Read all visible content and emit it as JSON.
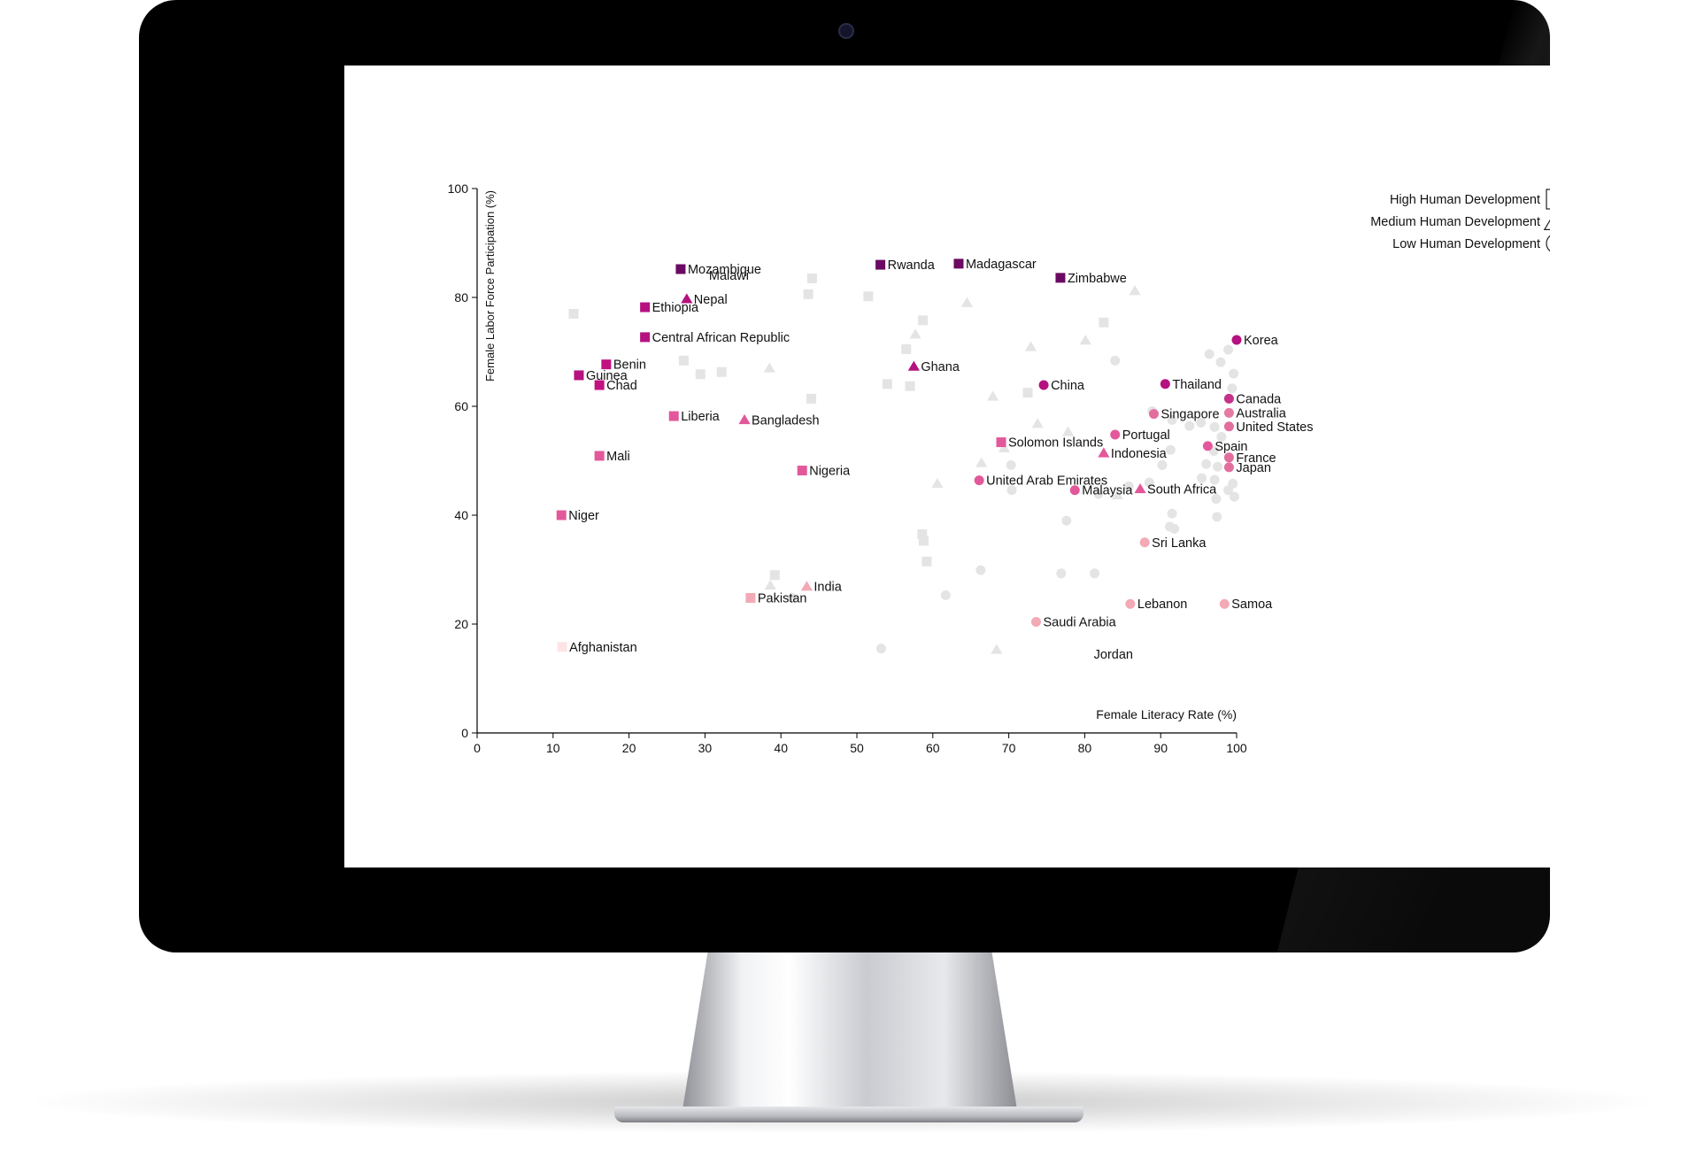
{
  "chart_data": {
    "type": "scatter",
    "xlabel": "Female Literacy Rate (%)",
    "ylabel": "Female Labor Force Participation (%)",
    "xlim": [
      0,
      100
    ],
    "ylim": [
      0,
      100
    ],
    "x_ticks": [
      "0",
      "10",
      "20",
      "30",
      "40",
      "50",
      "60",
      "70",
      "80",
      "90",
      "100"
    ],
    "y_ticks": [
      "0",
      "20",
      "40",
      "60",
      "80",
      "100"
    ],
    "legend": [
      {
        "label": "High Human Development",
        "shape": "square-icon"
      },
      {
        "label": "Medium Human Development",
        "shape": "triangle-icon"
      },
      {
        "label": "Low Human Development",
        "shape": "circle-icon"
      }
    ],
    "legend_position": "top-right",
    "grid": false,
    "points": [
      {
        "name": "Mozambique",
        "x": 26.8,
        "y": 85.2,
        "shape": "square",
        "color": "#6b0a62"
      },
      {
        "name": "Rwanda",
        "x": 53.1,
        "y": 86.0,
        "shape": "square",
        "color": "#6b0a62"
      },
      {
        "name": "Madagascar",
        "x": 63.4,
        "y": 86.2,
        "shape": "square",
        "color": "#6b0a62"
      },
      {
        "name": "Zimbabwe",
        "x": 76.8,
        "y": 83.6,
        "shape": "square",
        "color": "#6b0a62"
      },
      {
        "name": "Ethiopia",
        "x": 22.1,
        "y": 78.2,
        "shape": "square",
        "color": "#b5117f"
      },
      {
        "name": "Nepal",
        "x": 27.6,
        "y": 79.7,
        "shape": "triangle",
        "color": "#b5117f"
      },
      {
        "name": "Central African Republic",
        "x": 22.1,
        "y": 72.7,
        "shape": "square",
        "color": "#b5117f"
      },
      {
        "name": "Benin",
        "x": 17.0,
        "y": 67.7,
        "shape": "square",
        "color": "#c2127f"
      },
      {
        "name": "Guinea",
        "x": 13.4,
        "y": 65.7,
        "shape": "square",
        "color": "#b5117f"
      },
      {
        "name": "Chad",
        "x": 16.1,
        "y": 63.9,
        "shape": "square",
        "color": "#c2127f"
      },
      {
        "name": "Ghana",
        "x": 57.5,
        "y": 67.3,
        "shape": "triangle",
        "color": "#b5117f"
      },
      {
        "name": "China",
        "x": 74.6,
        "y": 63.9,
        "shape": "circle",
        "color": "#b5117f"
      },
      {
        "name": "Thailand",
        "x": 90.6,
        "y": 64.1,
        "shape": "circle",
        "color": "#b5117f"
      },
      {
        "name": "Korea",
        "x": 100.0,
        "y": 72.2,
        "shape": "circle",
        "color": "#b5117f"
      },
      {
        "name": "Canada",
        "x": 99.0,
        "y": 61.4,
        "shape": "circle",
        "color": "#c4328a"
      },
      {
        "name": "Australia",
        "x": 99.0,
        "y": 58.8,
        "shape": "circle",
        "color": "#e679a4"
      },
      {
        "name": "United States",
        "x": 99.0,
        "y": 56.3,
        "shape": "circle",
        "color": "#e26e9e"
      },
      {
        "name": "Singapore",
        "x": 89.1,
        "y": 58.6,
        "shape": "circle",
        "color": "#e26e9e"
      },
      {
        "name": "Liberia",
        "x": 25.9,
        "y": 58.2,
        "shape": "square",
        "color": "#e3589a"
      },
      {
        "name": "Bangladesh",
        "x": 35.2,
        "y": 57.5,
        "shape": "triangle",
        "color": "#e3589a"
      },
      {
        "name": "Portugal",
        "x": 84.0,
        "y": 54.8,
        "shape": "circle",
        "color": "#e3589a"
      },
      {
        "name": "Spain",
        "x": 96.2,
        "y": 52.7,
        "shape": "circle",
        "color": "#e3589a"
      },
      {
        "name": "France",
        "x": 99.0,
        "y": 50.6,
        "shape": "circle",
        "color": "#e26e9e"
      },
      {
        "name": "Japan",
        "x": 99.0,
        "y": 48.8,
        "shape": "circle",
        "color": "#e26e9e"
      },
      {
        "name": "Solomon Islands",
        "x": 69.0,
        "y": 53.4,
        "shape": "square",
        "color": "#e3589a"
      },
      {
        "name": "Indonesia",
        "x": 82.5,
        "y": 51.4,
        "shape": "triangle",
        "color": "#e3589a"
      },
      {
        "name": "Mali",
        "x": 16.1,
        "y": 50.9,
        "shape": "square",
        "color": "#e3589a"
      },
      {
        "name": "Nigeria",
        "x": 42.8,
        "y": 48.2,
        "shape": "square",
        "color": "#e3589a"
      },
      {
        "name": "United Arab Emirates",
        "x": 66.1,
        "y": 46.4,
        "shape": "circle",
        "color": "#e3589a"
      },
      {
        "name": "Malaysia",
        "x": 78.7,
        "y": 44.6,
        "shape": "circle",
        "color": "#e3589a"
      },
      {
        "name": "South Africa",
        "x": 87.3,
        "y": 44.8,
        "shape": "triangle",
        "color": "#e3589a"
      },
      {
        "name": "Niger",
        "x": 11.1,
        "y": 40.0,
        "shape": "square",
        "color": "#e3589a"
      },
      {
        "name": "Sri Lanka",
        "x": 87.9,
        "y": 35.0,
        "shape": "circle",
        "color": "#f3aab5"
      },
      {
        "name": "India",
        "x": 43.4,
        "y": 26.9,
        "shape": "triangle",
        "color": "#f3aab5"
      },
      {
        "name": "Pakistan",
        "x": 36.0,
        "y": 24.8,
        "shape": "square",
        "color": "#f3aab5"
      },
      {
        "name": "Lebanon",
        "x": 86.0,
        "y": 23.7,
        "shape": "circle",
        "color": "#f3aab5"
      },
      {
        "name": "Samoa",
        "x": 98.4,
        "y": 23.7,
        "shape": "circle",
        "color": "#f3aab5"
      },
      {
        "name": "Saudi Arabia",
        "x": 73.6,
        "y": 20.4,
        "shape": "circle",
        "color": "#f3aab5"
      },
      {
        "name": "Afghanistan",
        "x": 11.2,
        "y": 15.8,
        "shape": "square",
        "color": "#fde4e4"
      },
      {
        "name": "Malawi",
        "x": null,
        "y": null,
        "shape": "",
        "color": ""
      },
      {
        "name": "Jordan",
        "x": null,
        "y": null,
        "shape": "",
        "color": ""
      }
    ],
    "background_points": [
      {
        "x": 12.7,
        "y": 77.0,
        "shape": "square"
      },
      {
        "x": 27.2,
        "y": 68.4,
        "shape": "square"
      },
      {
        "x": 29.4,
        "y": 65.9,
        "shape": "square"
      },
      {
        "x": 32.2,
        "y": 66.3,
        "shape": "square"
      },
      {
        "x": 43.6,
        "y": 80.6,
        "shape": "square"
      },
      {
        "x": 44.1,
        "y": 83.5,
        "shape": "square"
      },
      {
        "x": 44.0,
        "y": 61.4,
        "shape": "square"
      },
      {
        "x": 51.5,
        "y": 80.2,
        "shape": "square"
      },
      {
        "x": 54.0,
        "y": 64.1,
        "shape": "square"
      },
      {
        "x": 56.5,
        "y": 70.5,
        "shape": "square"
      },
      {
        "x": 57.0,
        "y": 63.7,
        "shape": "square"
      },
      {
        "x": 58.7,
        "y": 75.8,
        "shape": "square"
      },
      {
        "x": 72.5,
        "y": 62.5,
        "shape": "square"
      },
      {
        "x": 82.5,
        "y": 75.4,
        "shape": "square"
      },
      {
        "x": 58.6,
        "y": 36.5,
        "shape": "square"
      },
      {
        "x": 58.8,
        "y": 35.3,
        "shape": "square"
      },
      {
        "x": 59.2,
        "y": 31.5,
        "shape": "square"
      },
      {
        "x": 39.2,
        "y": 29.0,
        "shape": "square"
      },
      {
        "x": 38.5,
        "y": 67.0,
        "shape": "triangle"
      },
      {
        "x": 57.7,
        "y": 73.2,
        "shape": "triangle"
      },
      {
        "x": 64.5,
        "y": 79.0,
        "shape": "triangle"
      },
      {
        "x": 67.9,
        "y": 61.8,
        "shape": "triangle"
      },
      {
        "x": 72.9,
        "y": 70.9,
        "shape": "triangle"
      },
      {
        "x": 73.8,
        "y": 56.8,
        "shape": "triangle"
      },
      {
        "x": 77.8,
        "y": 55.3,
        "shape": "triangle"
      },
      {
        "x": 80.1,
        "y": 72.1,
        "shape": "triangle"
      },
      {
        "x": 86.6,
        "y": 81.2,
        "shape": "triangle"
      },
      {
        "x": 60.6,
        "y": 45.8,
        "shape": "triangle"
      },
      {
        "x": 66.4,
        "y": 49.6,
        "shape": "triangle"
      },
      {
        "x": 69.4,
        "y": 52.3,
        "shape": "triangle"
      },
      {
        "x": 84.3,
        "y": 43.7,
        "shape": "triangle"
      },
      {
        "x": 68.4,
        "y": 15.3,
        "shape": "triangle"
      },
      {
        "x": 38.6,
        "y": 27.1,
        "shape": "triangle"
      },
      {
        "x": 84.0,
        "y": 68.4,
        "shape": "circle"
      },
      {
        "x": 96.4,
        "y": 69.6,
        "shape": "circle"
      },
      {
        "x": 97.9,
        "y": 68.1,
        "shape": "circle"
      },
      {
        "x": 98.9,
        "y": 70.4,
        "shape": "circle"
      },
      {
        "x": 99.6,
        "y": 66.0,
        "shape": "circle"
      },
      {
        "x": 99.4,
        "y": 63.3,
        "shape": "circle"
      },
      {
        "x": 88.9,
        "y": 59.1,
        "shape": "circle"
      },
      {
        "x": 91.5,
        "y": 57.5,
        "shape": "circle"
      },
      {
        "x": 93.8,
        "y": 56.4,
        "shape": "circle"
      },
      {
        "x": 95.3,
        "y": 57.0,
        "shape": "circle"
      },
      {
        "x": 97.1,
        "y": 56.2,
        "shape": "circle"
      },
      {
        "x": 98.0,
        "y": 54.4,
        "shape": "circle"
      },
      {
        "x": 97.0,
        "y": 51.8,
        "shape": "circle"
      },
      {
        "x": 96.0,
        "y": 49.4,
        "shape": "circle"
      },
      {
        "x": 97.5,
        "y": 48.9,
        "shape": "circle"
      },
      {
        "x": 95.4,
        "y": 46.8,
        "shape": "circle"
      },
      {
        "x": 97.1,
        "y": 46.5,
        "shape": "circle"
      },
      {
        "x": 99.5,
        "y": 45.8,
        "shape": "circle"
      },
      {
        "x": 98.9,
        "y": 44.6,
        "shape": "circle"
      },
      {
        "x": 99.7,
        "y": 43.4,
        "shape": "circle"
      },
      {
        "x": 97.3,
        "y": 43.0,
        "shape": "circle"
      },
      {
        "x": 91.3,
        "y": 52.0,
        "shape": "circle"
      },
      {
        "x": 90.2,
        "y": 49.2,
        "shape": "circle"
      },
      {
        "x": 88.5,
        "y": 46.0,
        "shape": "circle"
      },
      {
        "x": 85.8,
        "y": 45.3,
        "shape": "circle"
      },
      {
        "x": 81.8,
        "y": 43.9,
        "shape": "circle"
      },
      {
        "x": 70.3,
        "y": 49.2,
        "shape": "circle"
      },
      {
        "x": 70.4,
        "y": 44.6,
        "shape": "circle"
      },
      {
        "x": 91.5,
        "y": 40.3,
        "shape": "circle"
      },
      {
        "x": 97.4,
        "y": 39.7,
        "shape": "circle"
      },
      {
        "x": 91.2,
        "y": 37.9,
        "shape": "circle"
      },
      {
        "x": 91.8,
        "y": 37.5,
        "shape": "circle"
      },
      {
        "x": 77.6,
        "y": 39.0,
        "shape": "circle"
      },
      {
        "x": 66.3,
        "y": 29.9,
        "shape": "circle"
      },
      {
        "x": 76.9,
        "y": 29.3,
        "shape": "circle"
      },
      {
        "x": 81.3,
        "y": 29.3,
        "shape": "circle"
      },
      {
        "x": 61.7,
        "y": 25.3,
        "shape": "circle"
      },
      {
        "x": 41.5,
        "y": 24.8,
        "shape": "circle"
      },
      {
        "x": 53.2,
        "y": 15.5,
        "shape": "circle"
      }
    ]
  }
}
